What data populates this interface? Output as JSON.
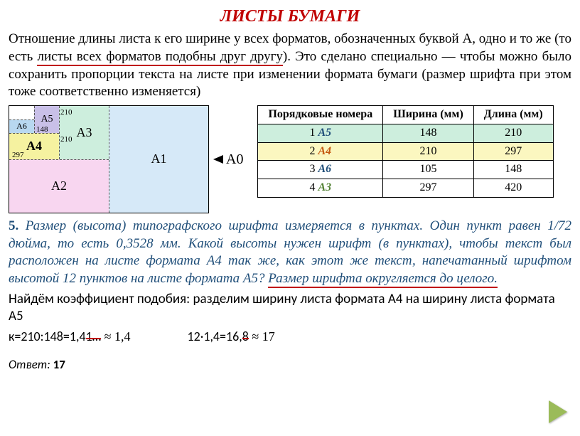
{
  "title": "ЛИСТЫ БУМАГИ",
  "intro_pre": "Отношение длины листа к его ширине у всех форматов, обозначенных буквой А, одно и то же (то есть ",
  "intro_u": "листы всех форматов подобны друг другу",
  "intro_post": "). Это сделано специально — чтобы можно было сохранить пропорции текста на листе при изменении формата бумаги (размер шрифта при этом тоже соответственно изменяется)",
  "diagram": {
    "a0": "А0",
    "a1": "А1",
    "a2": "А2",
    "a3": "А3",
    "a4": "А4",
    "a5": "А5",
    "a6": "А6",
    "d210a": "210",
    "d210b": "210",
    "d148": "148",
    "d297": "297"
  },
  "table": {
    "h1": "Порядковые номера",
    "h2": "Ширина (мм)",
    "h3": "Длина (мм)",
    "rows": [
      {
        "n": "1",
        "f": "А5",
        "w": "148",
        "l": "210",
        "cls": "row-green",
        "color": "#1f4e79"
      },
      {
        "n": "2",
        "f": "А4",
        "w": "210",
        "l": "297",
        "cls": "row-yellow",
        "color": "#c55a11"
      },
      {
        "n": "3",
        "f": "А6",
        "w": "105",
        "l": "148",
        "cls": "",
        "color": "#1f4e79"
      },
      {
        "n": "4",
        "f": "А3",
        "w": "297",
        "l": "420",
        "cls": "",
        "color": "#548235"
      }
    ]
  },
  "problem": {
    "num": "5.",
    "body_pre": " Размер (высота) типографского шрифта измеряется в пунктах. Один пункт равен 1/72 дюйма, то есть 0,3528 мм. Какой высоты нужен шрифт (в пунктах), чтобы текст был расположен на листе формата А4 так же, как этот же текст, напечатанный шрифтом высотой 12 пунктов на листе формата А5? ",
    "body_u": "Размер шрифта округляется до целого."
  },
  "solution": "Найдём коэффициент подобия: разделим ширину листа формата А4 на ширину листа формата А5",
  "calc": {
    "c1a": "к=210:148=1,4",
    "c1b": "1…",
    "c1approx": " ≈ 1,4",
    "c2a": "12·1,4=16,",
    "c2b": "8",
    "c2approx": " ≈ 17"
  },
  "answer_label": "Ответ:",
  "answer_value": " 17"
}
